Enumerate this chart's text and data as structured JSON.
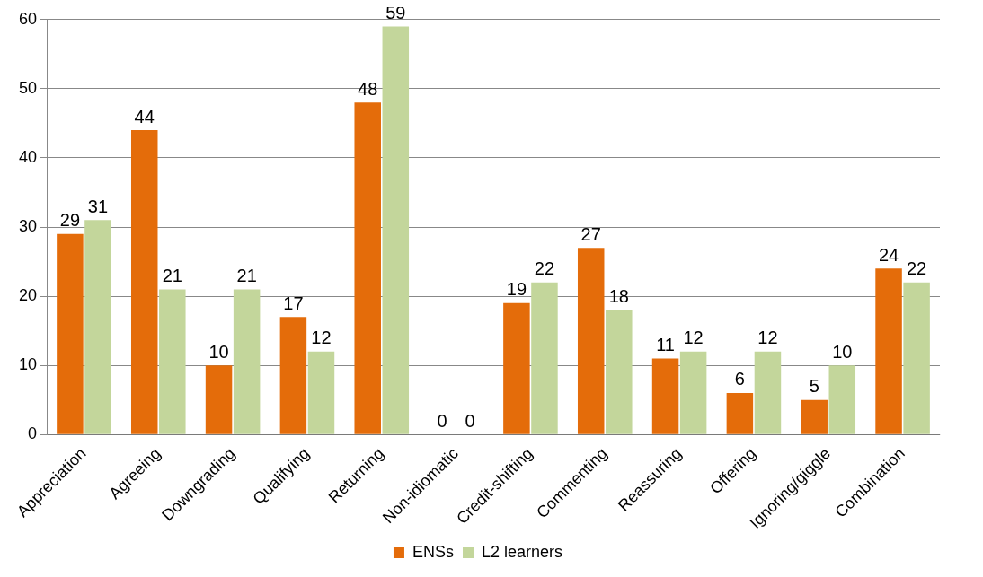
{
  "chart_data": {
    "type": "bar",
    "categories": [
      "Appreciation",
      "Agreeing",
      "Downgrading",
      "Qualifying",
      "Returning",
      "Non-idiomatic",
      "Credit-shifting",
      "Commenting",
      "Reassuring",
      "Offering",
      "Ignoring/giggle",
      "Combination"
    ],
    "series": [
      {
        "name": "ENSs",
        "color": "#e46c0a",
        "values": [
          29,
          44,
          10,
          17,
          48,
          0,
          19,
          27,
          11,
          6,
          5,
          24
        ]
      },
      {
        "name": "L2 learners",
        "color": "#c3d69b",
        "values": [
          31,
          21,
          21,
          12,
          59,
          0,
          22,
          18,
          12,
          12,
          10,
          22
        ]
      }
    ],
    "ylim": [
      0,
      60
    ],
    "yticks": [
      0,
      10,
      20,
      30,
      40,
      50,
      60
    ],
    "grid": "y",
    "legend": "bottom",
    "data_labels": true
  }
}
